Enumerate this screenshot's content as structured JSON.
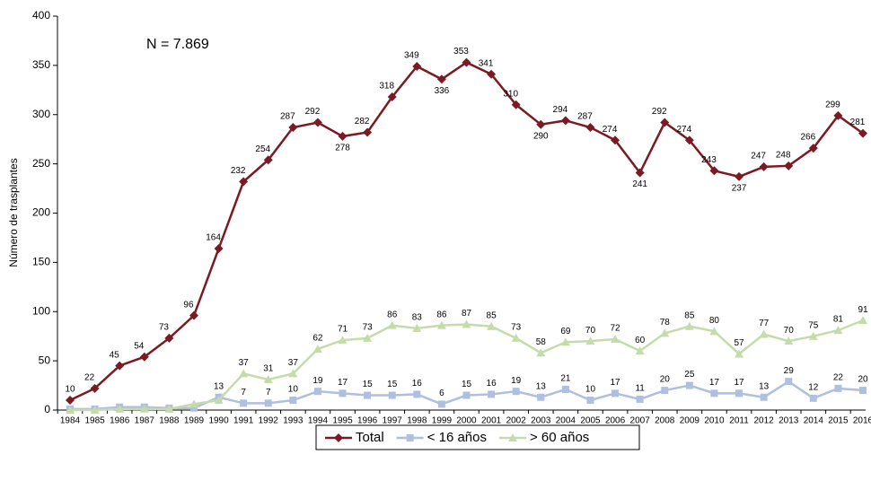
{
  "chart_data": {
    "type": "line",
    "annotation": "N = 7.869",
    "y_label": "Número de trasplantes",
    "categories": [
      "1984",
      "1985",
      "1986",
      "1987",
      "1988",
      "1989",
      "1990",
      "1991",
      "1992",
      "1993",
      "1994",
      "1995",
      "1996",
      "1997",
      "1998",
      "1999",
      "2000",
      "2001",
      "2002",
      "2003",
      "2004",
      "2005",
      "2006",
      "2007",
      "2008",
      "2009",
      "2010",
      "2011",
      "2012",
      "2013",
      "2014",
      "2015",
      "2016"
    ],
    "ylim": [
      0,
      400
    ],
    "yticks": [
      0,
      50,
      100,
      150,
      200,
      250,
      300,
      350,
      400
    ],
    "legend": "bottom",
    "series": [
      {
        "name": "Total",
        "color": "#7b1a22",
        "marker": "diamond",
        "values": [
          10,
          22,
          45,
          54,
          73,
          96,
          164,
          232,
          254,
          287,
          292,
          278,
          282,
          318,
          349,
          336,
          353,
          341,
          310,
          290,
          294,
          287,
          274,
          241,
          292,
          274,
          243,
          237,
          247,
          248,
          266,
          299,
          281
        ],
        "value_labels": [
          "10",
          "22",
          "45",
          "54",
          "73",
          "96",
          "164",
          "232",
          "254",
          "287",
          "292",
          "278",
          "282",
          "318",
          "349",
          "336",
          "353",
          "341",
          "310",
          "290",
          "294",
          "287",
          "274",
          "241",
          "292",
          "274",
          "243",
          "237",
          "247",
          "248",
          "266",
          "299",
          "281"
        ]
      },
      {
        "name": "< 16 años",
        "color": "#aebfe0",
        "marker": "square",
        "values": [
          1,
          1,
          3,
          3,
          2,
          2,
          13,
          7,
          7,
          10,
          19,
          17,
          15,
          15,
          16,
          6,
          15,
          16,
          19,
          13,
          21,
          10,
          17,
          11,
          20,
          25,
          17,
          17,
          13,
          29,
          12,
          22,
          20
        ],
        "value_labels": [
          null,
          null,
          null,
          null,
          null,
          null,
          "13",
          "7",
          "7",
          "10",
          "19",
          "17",
          "15",
          "15",
          "16",
          "6",
          "15",
          "16",
          "19",
          "13",
          "21",
          "10",
          "17",
          "11",
          "20",
          "25",
          "17",
          "17",
          "13",
          "29",
          "12",
          "22",
          "20"
        ]
      },
      {
        "name": "> 60 años",
        "color": "#c5dcaa",
        "marker": "triangle",
        "values": [
          0,
          0,
          1,
          1,
          1,
          6,
          10,
          37,
          31,
          37,
          62,
          71,
          73,
          86,
          83,
          86,
          87,
          85,
          73,
          58,
          69,
          70,
          72,
          60,
          78,
          85,
          80,
          57,
          77,
          70,
          75,
          81,
          91
        ],
        "value_labels": [
          null,
          null,
          null,
          null,
          null,
          null,
          null,
          "37",
          "31",
          "37",
          "62",
          "71",
          "73",
          "86",
          "83",
          "86",
          "87",
          "85",
          "73",
          "58",
          "69",
          "70",
          "72",
          "60",
          "78",
          "85",
          "80",
          "57",
          "77",
          "70",
          "75",
          "81",
          "91"
        ]
      }
    ]
  }
}
